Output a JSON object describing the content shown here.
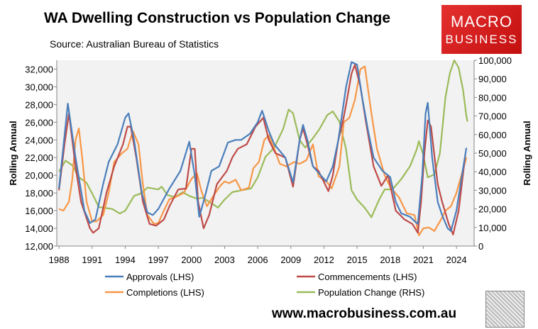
{
  "chart_data": {
    "type": "line",
    "title": "WA Dwelling Construction vs Population Change",
    "subtitle": "Source: Australian Bureau of Statistics",
    "ylabel": "Rolling Annual",
    "y2label": "Rolling Annual",
    "ylim": [
      12000,
      33000
    ],
    "y2lim": [
      0,
      100000
    ],
    "xlim": [
      1987.8,
      2025.6
    ],
    "yticks": [
      "12,000",
      "14,000",
      "16,000",
      "18,000",
      "20,000",
      "22,000",
      "24,000",
      "26,000",
      "28,000",
      "30,000",
      "32,000"
    ],
    "y2ticks": [
      "0",
      "10,000",
      "20,000",
      "30,000",
      "40,000",
      "50,000",
      "60,000",
      "70,000",
      "80,000",
      "90,000",
      "100,000"
    ],
    "xticks": [
      "1988",
      "1991",
      "1994",
      "1997",
      "2000",
      "2003",
      "2006",
      "2009",
      "2012",
      "2015",
      "2018",
      "2021",
      "2024"
    ],
    "legend_position": "bottom",
    "series": [
      {
        "name": "Approvals (LHS)",
        "axis": "left",
        "color": "#4a7ebb",
        "x": [
          1988,
          1988.8,
          1989.5,
          1990.3,
          1990.8,
          1991.3,
          1992,
          1992.5,
          1993.3,
          1994,
          1994.3,
          1994.8,
          1995.5,
          1996,
          1996.5,
          1997,
          1998,
          1999,
          1999.8,
          2000.3,
          2000.7,
          2001.2,
          2001.8,
          2002.5,
          2003.3,
          2004,
          2004.5,
          2005.3,
          2006,
          2006.4,
          2007,
          2007.5,
          2008.5,
          2009.2,
          2009.8,
          2010.1,
          2010.5,
          2011,
          2011.7,
          2012.2,
          2012.8,
          2013.3,
          2014,
          2014.5,
          2015,
          2015.5,
          2016,
          2016.5,
          2017.3,
          2018,
          2018.5,
          2019,
          2019.8,
          2020.3,
          2020.5,
          2020.9,
          2021.2,
          2021.4,
          2021.8,
          2022.3,
          2022.7,
          2023.2,
          2023.5,
          2024,
          2024.5,
          2024.9
        ],
        "y": [
          18500,
          28100,
          22000,
          16000,
          14600,
          15000,
          19000,
          21500,
          23500,
          26500,
          27000,
          24000,
          18000,
          15800,
          15500,
          16200,
          18500,
          20500,
          23800,
          20000,
          15300,
          17500,
          20500,
          21000,
          23700,
          24000,
          24000,
          24700,
          26000,
          27300,
          25000,
          23500,
          22000,
          19200,
          24000,
          25700,
          24000,
          21000,
          20000,
          19300,
          21000,
          24000,
          30000,
          32800,
          32500,
          28500,
          25000,
          22000,
          20500,
          19800,
          17000,
          15700,
          15300,
          14700,
          14500,
          20000,
          27000,
          28200,
          22000,
          17000,
          15500,
          14000,
          13700,
          16000,
          20000,
          23100
        ]
      },
      {
        "name": "Commencements (LHS)",
        "axis": "left",
        "color": "#be4b48",
        "x": [
          1988,
          1988.5,
          1988.9,
          1989.5,
          1990,
          1990.8,
          1991.1,
          1991.6,
          1992.3,
          1993,
          1993.8,
          1994.2,
          1994.5,
          1995,
          1995.6,
          1996.2,
          1996.8,
          1997.5,
          1998,
          1998.8,
          1999.5,
          2000,
          2000.3,
          2000.6,
          2001.1,
          2001.6,
          2002.3,
          2003.2,
          2003.7,
          2004.2,
          2005,
          2005.8,
          2006.5,
          2007,
          2007.6,
          2008.5,
          2009.2,
          2009.8,
          2010.1,
          2010.5,
          2011,
          2011.5,
          2012.4,
          2012.8,
          2013.3,
          2013.7,
          2014,
          2014.5,
          2014.8,
          2015.3,
          2015.8,
          2016.5,
          2017.2,
          2017.8,
          2018.5,
          2019.3,
          2020,
          2020.5,
          2020.8,
          2021.1,
          2021.4,
          2021.7,
          2022.3,
          2022.7,
          2023.3,
          2023.7,
          2024.2,
          2024.8
        ],
        "y": [
          18300,
          23500,
          27000,
          21000,
          17000,
          14000,
          13500,
          14000,
          18000,
          21000,
          23500,
          25500,
          25500,
          22000,
          17000,
          14500,
          14300,
          15000,
          16500,
          18400,
          18500,
          23000,
          23000,
          17000,
          14000,
          15500,
          19000,
          20500,
          22000,
          23000,
          23500,
          25500,
          26500,
          24000,
          22500,
          22000,
          18700,
          24000,
          25300,
          23500,
          21000,
          20500,
          18200,
          20000,
          24000,
          26000,
          28000,
          31500,
          32500,
          30000,
          26000,
          21000,
          18800,
          20000,
          16000,
          15000,
          14500,
          13500,
          17000,
          22500,
          26200,
          25500,
          19000,
          17000,
          14500,
          13300,
          16000,
          22300
        ]
      },
      {
        "name": "Completions (LHS)",
        "axis": "left",
        "color": "#f79646",
        "x": [
          1988,
          1988.4,
          1988.9,
          1989.2,
          1989.5,
          1989.8,
          1990.1,
          1990.5,
          1991,
          1991.4,
          1992,
          1992.5,
          1993,
          1993.7,
          1994.2,
          1994.7,
          1995.2,
          1995.6,
          1996,
          1996.6,
          1997,
          1997.5,
          1998,
          1998.5,
          1999.3,
          2000,
          2000.5,
          2000.9,
          2001.4,
          2002,
          2002.6,
          2003,
          2003.4,
          2004,
          2004.5,
          2005.2,
          2005.6,
          2006.1,
          2006.6,
          2007,
          2007.5,
          2008,
          2008.6,
          2009.3,
          2009.8,
          2010.4,
          2011,
          2011.5,
          2012.3,
          2012.7,
          2013.4,
          2013.8,
          2014.3,
          2014.8,
          2015.3,
          2015.7,
          2016.3,
          2016.8,
          2017.5,
          2018,
          2018.8,
          2019.5,
          2020.2,
          2020.6,
          2021,
          2021.5,
          2022,
          2022.6,
          2023,
          2023.5,
          2024,
          2024.9
        ],
        "y": [
          16200,
          16000,
          17000,
          19500,
          24000,
          25300,
          22000,
          17000,
          14800,
          14800,
          15500,
          18000,
          21500,
          22500,
          23000,
          25000,
          23500,
          19000,
          15500,
          14500,
          14600,
          16000,
          17300,
          17500,
          18000,
          19600,
          20200,
          18200,
          16500,
          17700,
          18800,
          19300,
          19100,
          19500,
          18300,
          18600,
          20800,
          21500,
          24000,
          24500,
          23000,
          21300,
          21000,
          21500,
          21300,
          21700,
          23500,
          19900,
          19200,
          18500,
          21000,
          26000,
          26500,
          28500,
          32000,
          32300,
          27000,
          23000,
          20000,
          18700,
          17500,
          15700,
          15500,
          13200,
          14000,
          14100,
          13700,
          15000,
          16000,
          16500,
          18000,
          22000
        ]
      },
      {
        "name": "Population Change (RHS)",
        "axis": "right",
        "color": "#9bbb59",
        "x": [
          1988,
          1988.6,
          1989.3,
          1989.7,
          1990.5,
          1991.2,
          1991.6,
          1992.2,
          1992.8,
          1993.5,
          1994,
          1994.8,
          1995.5,
          1996,
          1996.5,
          1997,
          1997.3,
          1997.8,
          1998.5,
          1999.2,
          1999.8,
          2000.5,
          2001,
          2001.7,
          2002.4,
          2003,
          2003.7,
          2004.5,
          2005.4,
          2006,
          2006.7,
          2007.5,
          2008.3,
          2008.8,
          2009.2,
          2009.8,
          2010.3,
          2011,
          2011.6,
          2012.3,
          2012.8,
          2013.4,
          2014,
          2014.5,
          2015,
          2015.7,
          2016.3,
          2017,
          2017.5,
          2018.2,
          2019,
          2019.8,
          2020.4,
          2020.6,
          2021,
          2021.4,
          2022,
          2022.5,
          2023,
          2023.4,
          2023.8,
          2024.2,
          2024.6,
          2024.9,
          2025
        ],
        "y": [
          40000,
          46000,
          43000,
          37500,
          34000,
          26000,
          21000,
          20500,
          20000,
          17500,
          19000,
          27000,
          28500,
          31500,
          31000,
          30500,
          32000,
          27500,
          26300,
          29000,
          27000,
          25500,
          26000,
          23500,
          20700,
          25000,
          29000,
          30000,
          31000,
          37000,
          48000,
          53000,
          63000,
          73500,
          71500,
          57000,
          53000,
          58000,
          63000,
          70500,
          72500,
          67000,
          52000,
          30000,
          25000,
          20500,
          15500,
          25000,
          30500,
          30500,
          36000,
          43000,
          52000,
          56500,
          49000,
          37000,
          38500,
          50000,
          80000,
          93000,
          100000,
          96000,
          84000,
          70000,
          67000
        ]
      }
    ]
  },
  "branding": {
    "logo_line1": "MACRO",
    "logo_line2": "BUSINESS",
    "url": "www.macrobusiness.com.au"
  }
}
